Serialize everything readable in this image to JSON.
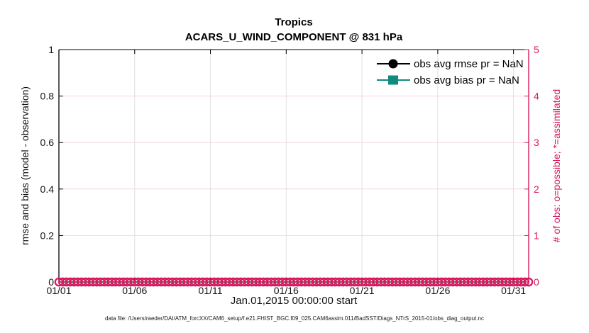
{
  "figure": {
    "title": "Tropics",
    "subtitle": "ACARS_U_WIND_COMPONENT @ 831 hPa",
    "xlabel": "Jan.01,2015 00:00:00 start",
    "ylabel_left": "rmse and bias (model - observation)",
    "ylabel_right": "# of obs: o=possible; *=assimilated",
    "caption": "data file: /Users/raeder/DAI/ATM_forcXX/CAM6_setup/f.e21.FHIST_BGC.f09_025.CAM6assim.011/BadSST/Diags_NTrS_2015-01/obs_diag_output.nc",
    "legend": [
      {
        "label": "obs avg rmse pr = NaN",
        "marker": "filled-circle",
        "color": "#000000"
      },
      {
        "label": "obs avg bias pr = NaN",
        "marker": "filled-square",
        "color": "#0e8b7f"
      }
    ],
    "colors": {
      "right_axis_pink": "#d81b60",
      "bias_teal": "#0e8b7f",
      "rmse_black": "#000000",
      "grid_vertical_gray": "#e0e0e0",
      "grid_horizontal_pink": "#f4d4e1"
    }
  },
  "chart_data": {
    "type": "line",
    "title": "Tropics",
    "subtitle": "ACARS_U_WIND_COMPONENT @ 831 hPa",
    "xlabel": "Jan.01,2015 00:00:00 start",
    "ylabel_left": "rmse and bias (model - observation)",
    "ylabel_right": "# of obs: o=possible; *=assimilated",
    "x_tick_labels": [
      "01/01",
      "01/06",
      "01/11",
      "01/16",
      "01/21",
      "01/26",
      "01/31"
    ],
    "x_tick_days": [
      1,
      6,
      11,
      16,
      21,
      26,
      31
    ],
    "x_range_days": [
      1,
      32
    ],
    "ylim_left": [
      0,
      1
    ],
    "yticks_left_labels": [
      "0",
      "0.2",
      "0.4",
      "0.6",
      "0.8",
      "1"
    ],
    "yticks_left_values": [
      0,
      0.2,
      0.4,
      0.6,
      0.8,
      1
    ],
    "ylim_right": [
      0,
      5
    ],
    "yticks_right_labels": [
      "0",
      "1",
      "2",
      "3",
      "4",
      "5"
    ],
    "yticks_right_values": [
      0,
      1,
      2,
      3,
      4,
      5
    ],
    "grid": true,
    "legend_position": "upper-right inside, no box",
    "series": [
      {
        "name": "obs avg rmse pr = NaN",
        "style": "line+circle",
        "color": "#000000",
        "values": "NaN - no curve drawn"
      },
      {
        "name": "obs avg bias pr = NaN",
        "style": "line+square",
        "color": "#0e8b7f",
        "values": "NaN - no curve drawn"
      },
      {
        "name": "# of obs possible (o markers)",
        "style": "open-circle-scatter",
        "axis": "right",
        "color": "#d81b60",
        "y_constant": 0,
        "x_start_day": 1,
        "x_end_day": 32,
        "x_step_days": 0.25,
        "n_points": 125
      }
    ]
  }
}
